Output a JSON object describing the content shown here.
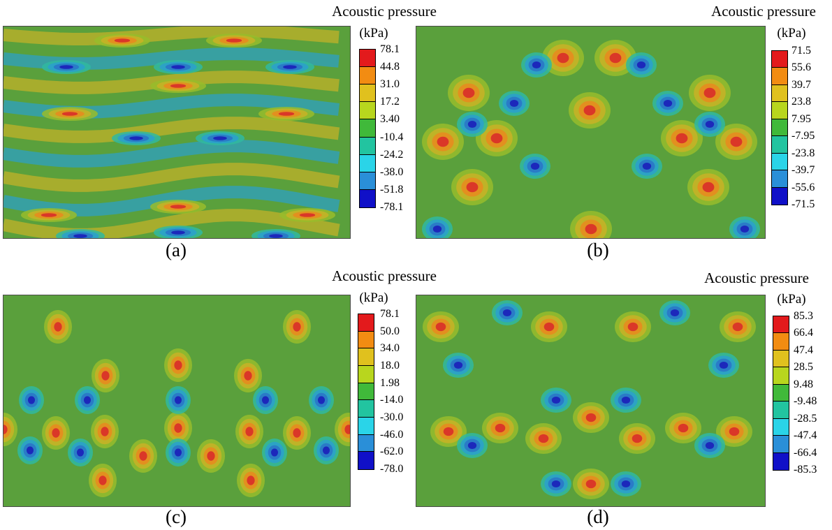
{
  "colorscale": [
    "#e31a1c",
    "#f28c12",
    "#e0c11e",
    "#b8d61e",
    "#40b93a",
    "#22c4a0",
    "#2ad4e8",
    "#2a8fd8",
    "#1010c8"
  ],
  "chart_data": [
    {
      "type": "heatmap",
      "label": "(a)",
      "legend_title": "Acoustic pressure",
      "unit": "(kPa)",
      "ticks": [
        "78.1",
        "44.8",
        "31.0",
        "17.2",
        "3.40",
        "-10.4",
        "-24.2",
        "-38.0",
        "-51.8",
        "-78.1"
      ],
      "range": [
        -78.1,
        78.1
      ]
    },
    {
      "type": "heatmap",
      "label": "(b)",
      "legend_title": "Acoustic pressure",
      "unit": "(kPa)",
      "ticks": [
        "71.5",
        "55.6",
        "39.7",
        "23.8",
        "7.95",
        "-7.95",
        "-23.8",
        "-39.7",
        "-55.6",
        "-71.5"
      ],
      "range": [
        -71.5,
        71.5
      ]
    },
    {
      "type": "heatmap",
      "label": "(c)",
      "legend_title": "Acoustic pressure",
      "unit": "(kPa)",
      "ticks": [
        "78.1",
        "50.0",
        "34.0",
        "18.0",
        "1.98",
        "-14.0",
        "-30.0",
        "-46.0",
        "-62.0",
        "-78.0"
      ],
      "range": [
        -78.0,
        78.1
      ]
    },
    {
      "type": "heatmap",
      "label": "(d)",
      "legend_title": "Acoustic pressure",
      "unit": "(kPa)",
      "ticks": [
        "85.3",
        "66.4",
        "47.4",
        "28.5",
        "9.48",
        "-9.48",
        "-28.5",
        "-47.4",
        "-66.4",
        "-85.3"
      ],
      "range": [
        -85.3,
        85.3
      ]
    }
  ]
}
